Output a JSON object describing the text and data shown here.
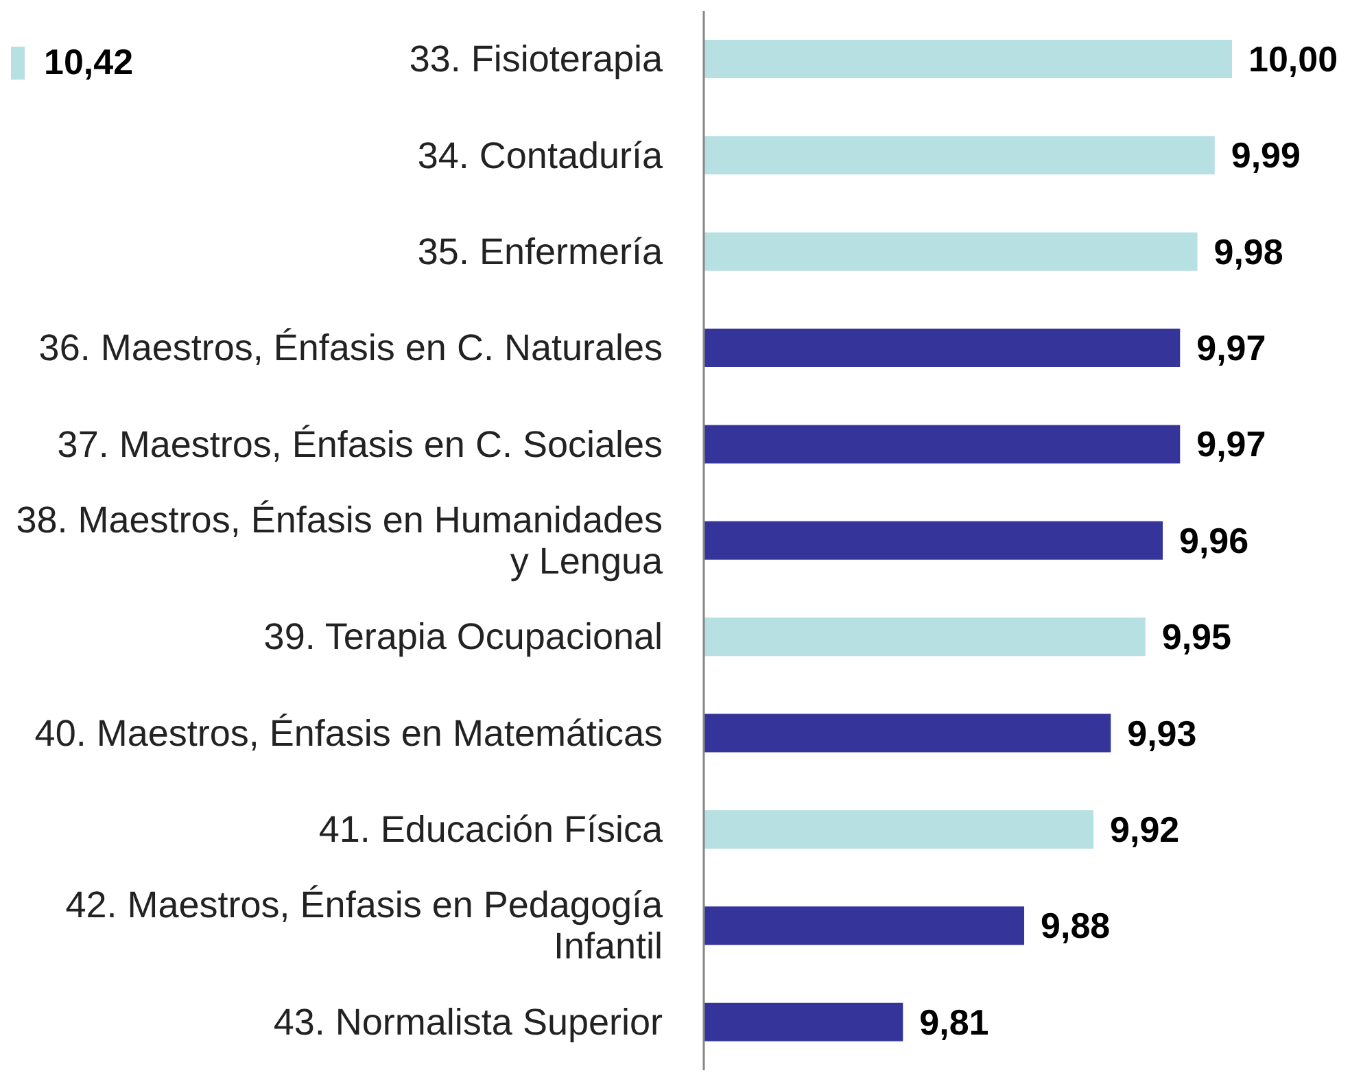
{
  "chart_data": {
    "type": "bar",
    "orientation": "horizontal",
    "categories": [
      "33. Fisioterapia",
      "34. Contaduría",
      "35. Enfermería",
      "36. Maestros, Énfasis en C. Naturales",
      "37. Maestros, Énfasis en C. Sociales",
      "38. Maestros, Énfasis en Humanidades y Lengua",
      "39. Terapia Ocupacional",
      "40. Maestros, Énfasis en Matemáticas",
      "41. Educación Física",
      "42. Maestros, Énfasis en  Pedagogía Infantil",
      "43. Normalista Superior"
    ],
    "values": [
      10.0,
      9.99,
      9.98,
      9.97,
      9.97,
      9.96,
      9.95,
      9.93,
      9.92,
      9.88,
      9.81
    ],
    "value_labels": [
      "10,00",
      "9,99",
      "9,98",
      "9,97",
      "9,97",
      "9,96",
      "9,95",
      "9,93",
      "9,92",
      "9,88",
      "9,81"
    ],
    "colors": [
      "#b7e0e3",
      "#b7e0e3",
      "#b7e0e3",
      "#35349a",
      "#35349a",
      "#35349a",
      "#b7e0e3",
      "#35349a",
      "#b7e0e3",
      "#35349a",
      "#35349a"
    ],
    "xlim": [
      9.695,
      10.0
    ],
    "annotations": [
      "10,42"
    ]
  }
}
